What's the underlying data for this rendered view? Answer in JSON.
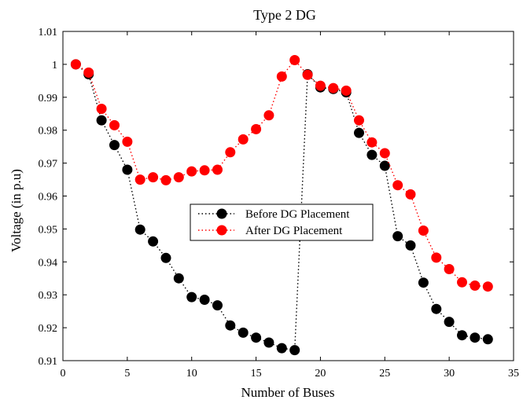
{
  "chart_data": {
    "type": "line",
    "title": "Type 2 DG",
    "xlabel": "Number of Buses",
    "ylabel": "Voltage (in p.u)",
    "xlim": [
      0,
      35
    ],
    "ylim": [
      0.91,
      1.01
    ],
    "x_ticks": [
      0,
      5,
      10,
      15,
      20,
      25,
      30,
      35
    ],
    "y_ticks": [
      0.91,
      0.92,
      0.93,
      0.94,
      0.95,
      0.96,
      0.97,
      0.98,
      0.99,
      1,
      1.01
    ],
    "x_tick_labels": [
      "0",
      "5",
      "10",
      "15",
      "20",
      "25",
      "30",
      "35"
    ],
    "y_tick_labels": [
      "0.91",
      "0.92",
      "0.93",
      "0.94",
      "0.95",
      "0.96",
      "0.97",
      "0.98",
      "0.99",
      "1",
      "1.01"
    ],
    "grid": false,
    "legend_position": "center",
    "x": [
      1,
      2,
      3,
      4,
      5,
      6,
      7,
      8,
      9,
      10,
      11,
      12,
      13,
      14,
      15,
      16,
      17,
      18,
      19,
      20,
      21,
      22,
      23,
      24,
      25,
      26,
      27,
      28,
      29,
      30,
      31,
      32,
      33
    ],
    "series": [
      {
        "name": "Before DG Placement",
        "color": "#000000",
        "values": [
          1.0,
          0.997,
          0.983,
          0.9755,
          0.968,
          0.9498,
          0.9462,
          0.9412,
          0.935,
          0.9293,
          0.9285,
          0.9268,
          0.9207,
          0.9185,
          0.917,
          0.9155,
          0.9138,
          0.9132,
          0.997,
          0.993,
          0.9925,
          0.9915,
          0.9792,
          0.9725,
          0.9692,
          0.9478,
          0.945,
          0.9337,
          0.9257,
          0.9218,
          0.9177,
          0.917,
          0.9165
        ]
      },
      {
        "name": "After DG Placement",
        "color": "#ff0000",
        "values": [
          1.0,
          0.9975,
          0.9865,
          0.9815,
          0.9765,
          0.965,
          0.9657,
          0.9648,
          0.9657,
          0.9675,
          0.9678,
          0.968,
          0.9733,
          0.9772,
          0.9803,
          0.9845,
          0.9963,
          1.0013,
          0.9968,
          0.9935,
          0.9928,
          0.992,
          0.983,
          0.9763,
          0.973,
          0.9633,
          0.9605,
          0.9495,
          0.9413,
          0.9378,
          0.9338,
          0.9328,
          0.9325
        ]
      }
    ]
  }
}
